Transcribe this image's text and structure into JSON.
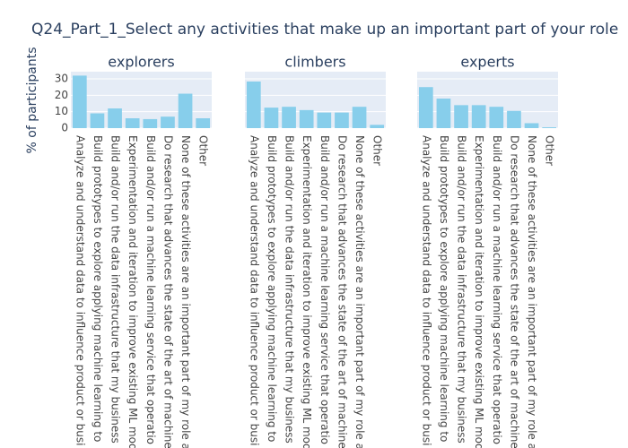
{
  "chart_data": {
    "type": "bar",
    "title": "Q24_Part_1_Select any activities that make up an important part of your role",
    "y_label": "% of participants",
    "categories": [
      "Analyze and understand data to influence product or busi",
      "Build prototypes to explore applying machine learning to",
      "Build and/or run the data infrastructure that my business",
      "Experimentation and iteration to improve existing ML mod",
      "Build and/or run a machine learning service that operatio",
      "Do research that advances the state of the art of machine",
      "None of these activities are an important part of my role a",
      "Other"
    ],
    "color": "#87ceeb",
    "ylim": [
      0,
      34.4
    ],
    "yticks": [
      0,
      10,
      20,
      30
    ],
    "grid": true,
    "series": [
      {
        "name": "explorers",
        "values": [
          32,
          9,
          12,
          6,
          5.5,
          7,
          21,
          6
        ]
      },
      {
        "name": "climbers",
        "values": [
          28.4,
          12.5,
          13,
          11,
          9.5,
          9.5,
          13,
          2
        ]
      },
      {
        "name": "experts",
        "values": [
          25,
          18,
          14,
          14,
          13,
          10.5,
          3,
          0.5
        ]
      }
    ]
  }
}
